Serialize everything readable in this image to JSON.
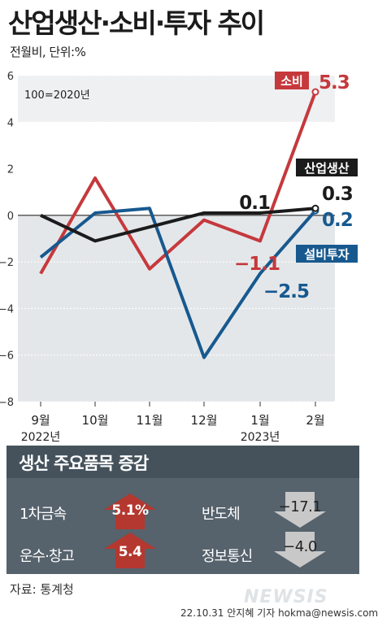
{
  "title": "산업생산·소비·투자 추이",
  "subtitle": "전월비, 단위:%",
  "chart_data": {
    "type": "line",
    "categories": [
      "9월",
      "10월",
      "11월",
      "12월",
      "1월",
      "2월"
    ],
    "year_labels": {
      "first": "2022년",
      "fifth": "2023년"
    },
    "base_note": "100=2020년",
    "ylim": [
      -8,
      6
    ],
    "yticks": [
      -8,
      -6,
      -4,
      -2,
      0,
      2,
      4,
      6
    ],
    "series": [
      {
        "name": "소비",
        "color": "#c5393c",
        "values": [
          -2.5,
          1.6,
          -2.3,
          -0.2,
          -1.1,
          5.3
        ],
        "labels": {
          "4": "−1.1",
          "5": "5.3"
        }
      },
      {
        "name": "산업생산",
        "color": "#1b1b1b",
        "values": [
          0.0,
          -1.1,
          -0.5,
          0.1,
          0.1,
          0.3
        ],
        "labels": {
          "4": "0.1",
          "5": "0.3"
        }
      },
      {
        "name": "설비투자",
        "color": "#17598f",
        "values": [
          -1.8,
          0.1,
          0.3,
          -6.1,
          -2.5,
          0.2
        ],
        "labels": {
          "4": "−2.5",
          "5": "0.2"
        }
      }
    ]
  },
  "panel": {
    "title": "생산 주요품목 증감",
    "items": [
      {
        "label": "1차금속",
        "value": "5.1%",
        "direction": "up",
        "color": "#b4382f"
      },
      {
        "label": "반도체",
        "value": "−17.1",
        "direction": "down",
        "color": "#c8c8c8"
      },
      {
        "label": "운수·창고",
        "value": "5.4",
        "direction": "up",
        "color": "#b4382f"
      },
      {
        "label": "정보통신",
        "value": "−4.0",
        "direction": "down",
        "color": "#c8c8c8"
      }
    ]
  },
  "source": "자료: 통계청",
  "watermark": "NEWSIS",
  "credit": "22.10.31  안지혜 기자  hokma@newsis.com"
}
